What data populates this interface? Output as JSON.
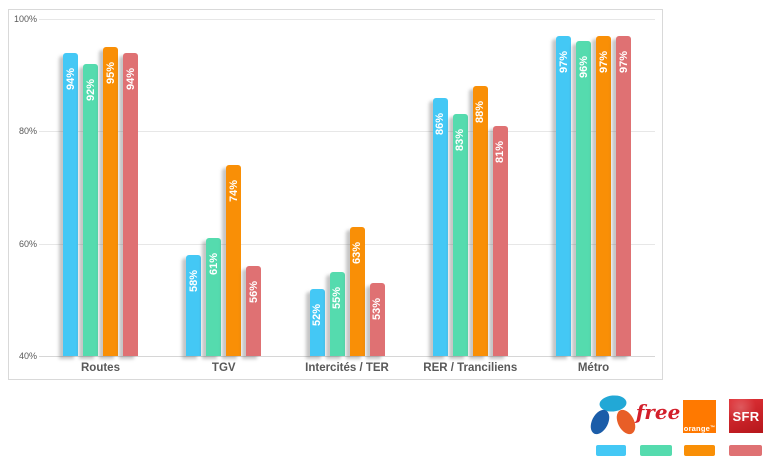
{
  "chart_data": {
    "type": "bar",
    "title": "",
    "categories": [
      "Routes",
      "TGV",
      "Intercités / TER",
      "RER / Tranciliens",
      "Métro"
    ],
    "series": [
      {
        "name": "Bouygues Telecom",
        "color": "#44C8F5",
        "values": [
          94,
          58,
          52,
          86,
          97
        ]
      },
      {
        "name": "Free",
        "color": "#55DBAE",
        "values": [
          92,
          61,
          55,
          83,
          96
        ]
      },
      {
        "name": "Orange",
        "color": "#F98F06",
        "values": [
          95,
          74,
          63,
          88,
          97
        ]
      },
      {
        "name": "SFR",
        "color": "#DF7173",
        "values": [
          94,
          56,
          53,
          81,
          97
        ]
      }
    ],
    "value_suffix": "%",
    "ylim": [
      40,
      100
    ],
    "yticks": [
      {
        "label": "100%",
        "value": 100
      },
      {
        "label": "80%",
        "value": 80
      },
      {
        "label": "60%",
        "value": 60
      },
      {
        "label": "40%",
        "value": 40
      }
    ],
    "grid": "horizontal",
    "legend_position": "bottom-right"
  },
  "legend": {
    "items": [
      {
        "brand": "Bouygues Telecom",
        "swatch_color": "#44C8F5",
        "logo_colors": {
          "top_petal": "#22A8D6",
          "left_petal": "#1B5DA9",
          "right_petal": "#E85E27"
        }
      },
      {
        "brand": "Free",
        "logo_text": "free",
        "logo_color": "#D31F2B",
        "swatch_color": "#55DBAE"
      },
      {
        "brand": "Orange",
        "logo_text": "orange",
        "logo_tm": "™",
        "logo_bg": "#FF7900",
        "swatch_color": "#F98F06"
      },
      {
        "brand": "SFR",
        "logo_text": "SFR",
        "logo_bg": "#DD1B21",
        "swatch_color": "#DF7173"
      }
    ]
  }
}
